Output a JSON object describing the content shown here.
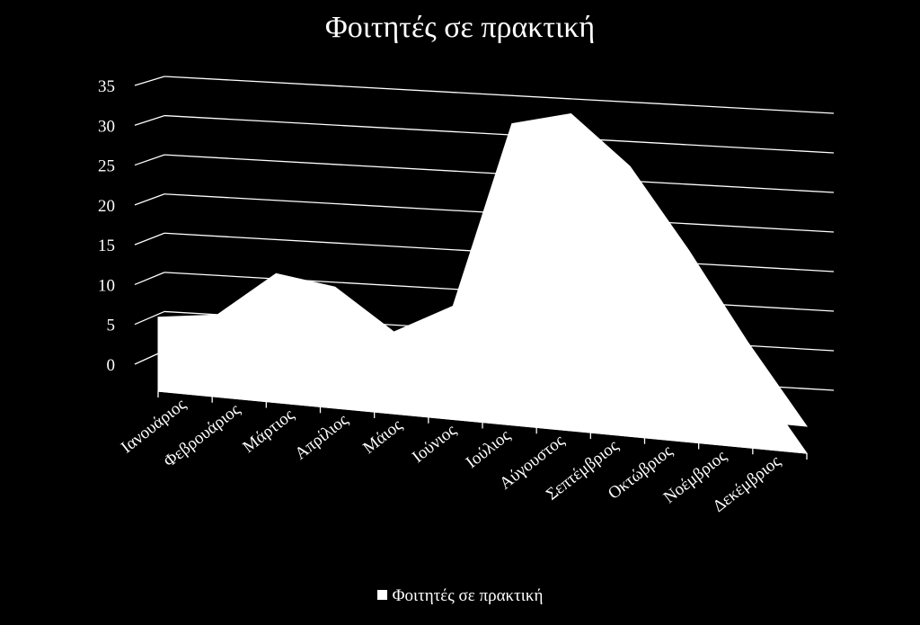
{
  "chart_data": {
    "type": "area",
    "title": "Φοιτητές σε πρακτική",
    "categories": [
      "Ιανουάριος",
      "Φεβρουάριος",
      "Μάρτιος",
      "Απρίλιος",
      "Μάιος",
      "Ιούνιος",
      "Ιούλιος",
      "Αύγουστος",
      "Σεπτέμβριος",
      "Οκτώβριος",
      "Νοέμβριος",
      "Δεκέμβριος"
    ],
    "series": [
      {
        "name": "Φοιτητές σε πρακτική",
        "values": [
          6,
          7,
          13,
          12,
          7,
          11,
          35,
          37,
          31,
          21,
          10,
          0
        ],
        "color": "#ffffff"
      }
    ],
    "y_ticks": [
      "0",
      "5",
      "10",
      "15",
      "20",
      "25",
      "30",
      "35"
    ],
    "ylim": [
      0,
      35
    ],
    "xlabel": "",
    "ylabel": "",
    "grid": true,
    "legend_position": "bottom",
    "style_3d": true,
    "background": "#000000",
    "foreground": "#ffffff"
  }
}
